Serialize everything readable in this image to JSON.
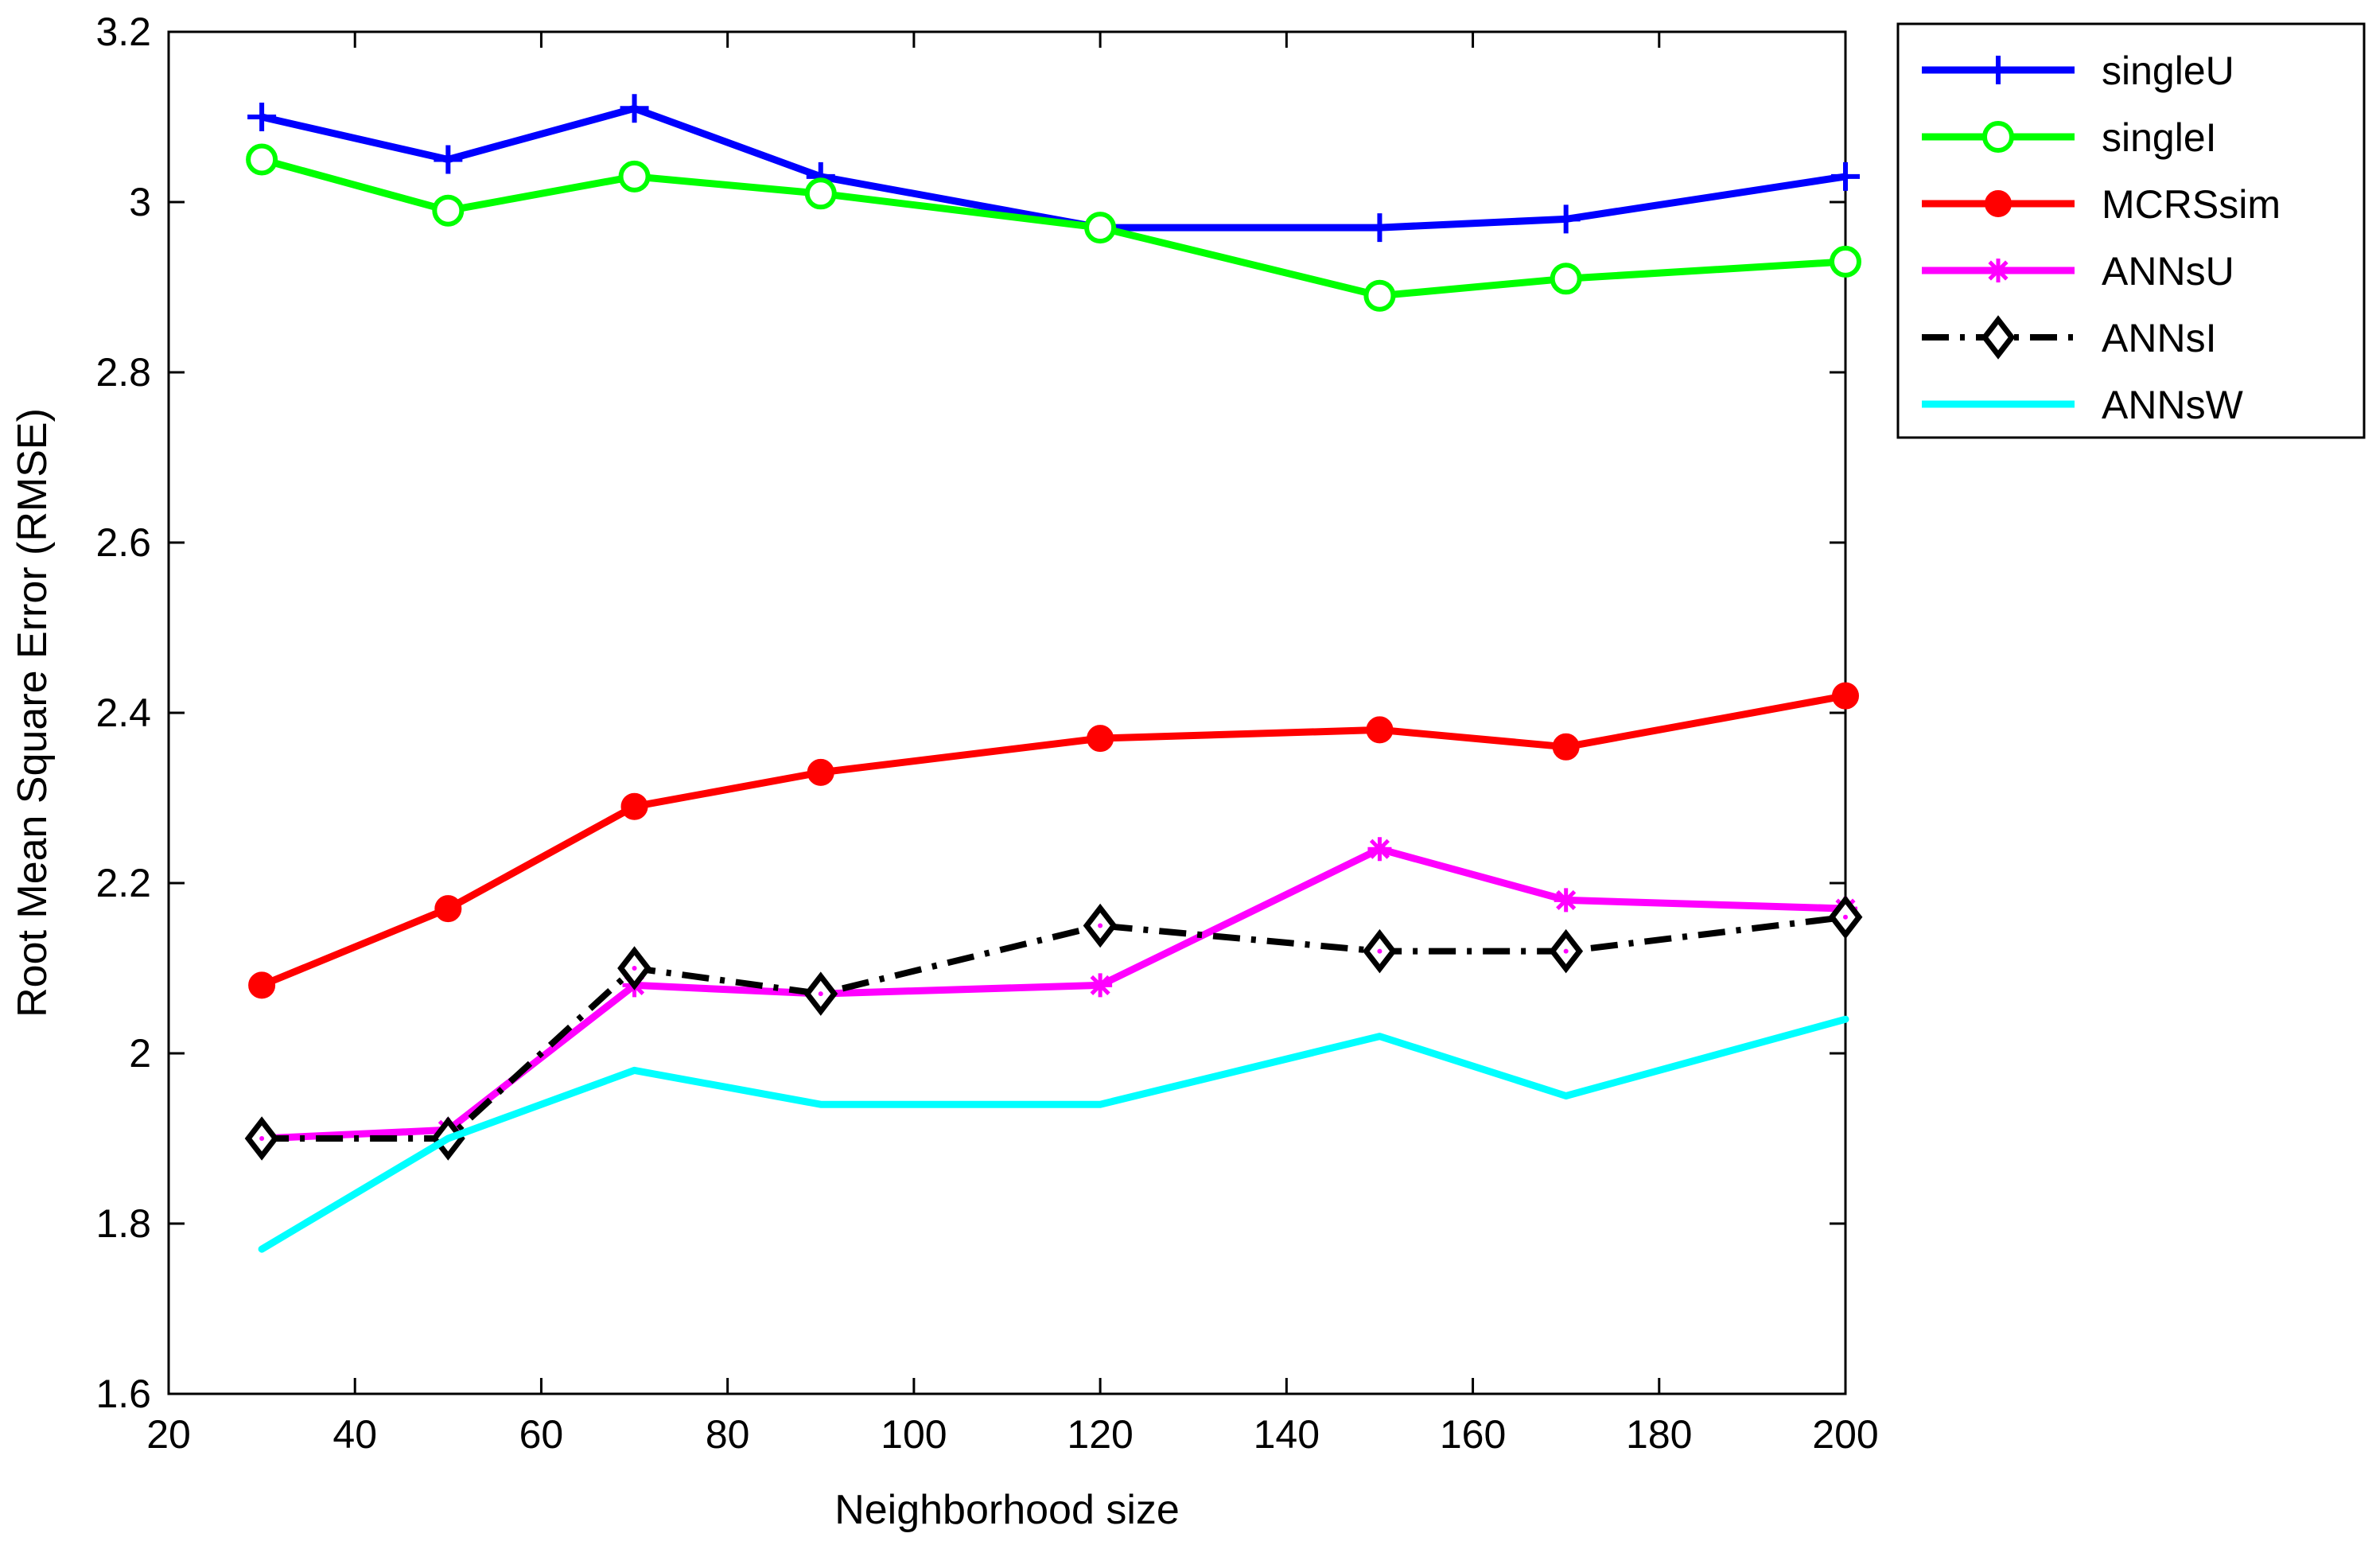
{
  "chart_data": {
    "type": "line",
    "title": "",
    "xlabel": "Neighborhood size",
    "ylabel": "Root Mean Square Error (RMSE)",
    "xlim": [
      20,
      200
    ],
    "ylim": [
      1.6,
      3.2
    ],
    "x_ticks": [
      20,
      40,
      60,
      80,
      100,
      120,
      140,
      160,
      180,
      200
    ],
    "y_ticks": [
      1.6,
      1.8,
      2,
      2.2,
      2.4,
      2.6,
      2.8,
      3,
      3.2
    ],
    "x_tick_labels": [
      "20",
      "40",
      "60",
      "80",
      "100",
      "120",
      "140",
      "160",
      "180",
      "200"
    ],
    "y_tick_labels": [
      "1.6",
      "1.8",
      "2",
      "2.2",
      "2.4",
      "2.6",
      "2.8",
      "3",
      "3.2"
    ],
    "grid": false,
    "legend_position": "outside-top-right",
    "x": [
      30,
      50,
      70,
      90,
      120,
      150,
      170,
      200
    ],
    "series": [
      {
        "name": "singleU",
        "color": "#0000ff",
        "marker": "plus",
        "line_style": "solid",
        "values": [
          3.1,
          3.05,
          3.11,
          3.03,
          2.97,
          2.97,
          2.98,
          3.03
        ]
      },
      {
        "name": "singleI",
        "color": "#00ff00",
        "marker": "circle",
        "line_style": "solid",
        "values": [
          3.05,
          2.99,
          3.03,
          3.01,
          2.97,
          2.89,
          2.91,
          2.93
        ]
      },
      {
        "name": "MCRSsim",
        "color": "#ff0000",
        "marker": "dot",
        "line_style": "solid",
        "values": [
          2.08,
          2.17,
          2.29,
          2.33,
          2.37,
          2.38,
          2.36,
          2.42
        ]
      },
      {
        "name": "ANNsU",
        "color": "#ff00ff",
        "marker": "star",
        "line_style": "solid",
        "values": [
          1.9,
          1.91,
          2.08,
          2.07,
          2.08,
          2.24,
          2.18,
          2.17
        ]
      },
      {
        "name": "ANNsI",
        "color": "#000000",
        "marker": "diamond",
        "line_style": "dashdot",
        "values": [
          1.9,
          1.9,
          2.1,
          2.07,
          2.15,
          2.12,
          2.12,
          2.16
        ]
      },
      {
        "name": "ANNsW",
        "color": "#00ffff",
        "marker": "none",
        "line_style": "solid",
        "values": [
          1.77,
          1.9,
          1.98,
          1.94,
          1.94,
          2.02,
          1.95,
          2.04
        ]
      }
    ]
  }
}
